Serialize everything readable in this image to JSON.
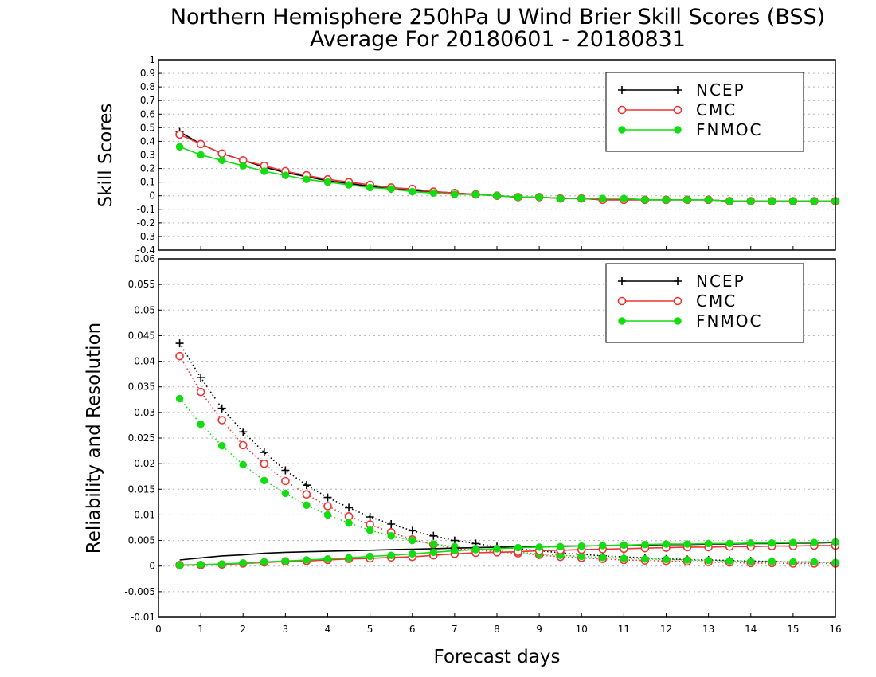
{
  "title_line1": "Northern Hemisphere 250hPa U Wind Brier Skill Scores (BSS)",
  "title_line2": "Average For 20180601 - 20180831",
  "colors": {
    "NCEP": "#000000",
    "CMC": "#ee3333",
    "FNMOC": "#11dd11"
  },
  "chart_data": [
    {
      "type": "line",
      "panel": "top",
      "title": "Northern Hemisphere 250hPa U Wind Brier Skill Scores (BSS)",
      "ylabel": "Skill Scores",
      "xlabel": "",
      "xlim": [
        0,
        16
      ],
      "ylim": [
        -0.4,
        1.0
      ],
      "yticks": [
        "1",
        "0.9",
        "0.8",
        "0.7",
        "0.6",
        "0.5",
        "0.4",
        "0.3",
        "0.2",
        "0.1",
        "0",
        "-0.1",
        "-0.2",
        "-0.3",
        "-0.4"
      ],
      "grid": "horizontal dotted",
      "legend_position": "top-right",
      "legend": [
        "NCEP",
        "CMC",
        "FNMOC"
      ],
      "x": [
        0.5,
        1,
        1.5,
        2,
        2.5,
        3,
        3.5,
        4,
        4.5,
        5,
        5.5,
        6,
        6.5,
        7,
        7.5,
        8,
        8.5,
        9,
        9.5,
        10,
        10.5,
        11,
        11.5,
        12,
        12.5,
        13,
        13.5,
        14,
        14.5,
        15,
        15.5,
        16
      ],
      "series": [
        {
          "name": "NCEP",
          "marker": "plus",
          "style": "solid",
          "values": [
            0.47,
            0.38,
            0.31,
            0.26,
            0.21,
            0.17,
            0.14,
            0.11,
            0.09,
            0.07,
            0.05,
            0.04,
            0.03,
            0.02,
            0.01,
            0.0,
            -0.01,
            -0.01,
            -0.02,
            -0.02,
            -0.03,
            -0.03,
            -0.03,
            -0.03,
            -0.03,
            -0.03,
            -0.04,
            -0.04,
            -0.04,
            -0.04,
            -0.04,
            -0.04
          ]
        },
        {
          "name": "CMC",
          "marker": "open-circle",
          "style": "solid",
          "values": [
            0.45,
            0.38,
            0.31,
            0.26,
            0.22,
            0.18,
            0.15,
            0.12,
            0.1,
            0.08,
            0.06,
            0.05,
            0.03,
            0.02,
            0.01,
            0.0,
            -0.01,
            -0.01,
            -0.02,
            -0.02,
            -0.03,
            -0.03,
            -0.03,
            -0.03,
            -0.03,
            -0.03,
            -0.04,
            -0.04,
            -0.04,
            -0.04,
            -0.04,
            -0.04
          ]
        },
        {
          "name": "FNMOC",
          "marker": "filled-circle",
          "style": "solid",
          "values": [
            0.36,
            0.3,
            0.26,
            0.22,
            0.18,
            0.15,
            0.12,
            0.1,
            0.08,
            0.06,
            0.05,
            0.03,
            0.02,
            0.01,
            0.01,
            0.0,
            -0.01,
            -0.01,
            -0.02,
            -0.02,
            -0.02,
            -0.02,
            -0.03,
            -0.03,
            -0.03,
            -0.03,
            -0.04,
            -0.04,
            -0.04,
            -0.04,
            -0.04,
            -0.04
          ]
        }
      ]
    },
    {
      "type": "line",
      "panel": "bottom",
      "title": "",
      "ylabel": "Reliability and Resolution",
      "xlabel": "Forecast days",
      "xlim": [
        0,
        16
      ],
      "ylim": [
        -0.01,
        0.06
      ],
      "yticks": [
        "0.06",
        "0.055",
        "0.05",
        "0.045",
        "0.04",
        "0.035",
        "0.03",
        "0.025",
        "0.02",
        "0.015",
        "0.01",
        "0.005",
        "0",
        "-0.005",
        "-0.01"
      ],
      "xticks": [
        "0",
        "1",
        "2",
        "3",
        "4",
        "5",
        "6",
        "7",
        "8",
        "9",
        "10",
        "11",
        "12",
        "13",
        "14",
        "15",
        "16"
      ],
      "grid": "horizontal dotted",
      "legend_position": "top-right",
      "legend": [
        "NCEP",
        "CMC",
        "FNMOC"
      ],
      "x": [
        0.5,
        1,
        1.5,
        2,
        2.5,
        3,
        3.5,
        4,
        4.5,
        5,
        5.5,
        6,
        6.5,
        7,
        7.5,
        8,
        8.5,
        9,
        9.5,
        10,
        10.5,
        11,
        11.5,
        12,
        12.5,
        13,
        13.5,
        14,
        14.5,
        15,
        15.5,
        16
      ],
      "series": [
        {
          "name": "NCEP",
          "metric": "reliability",
          "marker": "plus",
          "style": "dotted",
          "values": [
            0.0435,
            0.0368,
            0.0308,
            0.0262,
            0.0222,
            0.0187,
            0.0158,
            0.0134,
            0.0114,
            0.0096,
            0.0082,
            0.0069,
            0.0059,
            0.005,
            0.0044,
            0.0038,
            0.0034,
            0.003,
            0.0026,
            0.0023,
            0.002,
            0.0018,
            0.0016,
            0.0014,
            0.0013,
            0.0012,
            0.0011,
            0.001,
            0.0009,
            0.0008,
            0.0008,
            0.0007
          ]
        },
        {
          "name": "CMC",
          "metric": "reliability",
          "marker": "open-circle",
          "style": "dotted",
          "values": [
            0.041,
            0.034,
            0.0285,
            0.0236,
            0.02,
            0.0166,
            0.014,
            0.0117,
            0.0097,
            0.0081,
            0.0066,
            0.0052,
            0.0042,
            0.0034,
            0.0031,
            0.0028,
            0.0025,
            0.0022,
            0.0018,
            0.0016,
            0.0014,
            0.0012,
            0.0011,
            0.001,
            0.0009,
            0.0008,
            0.0007,
            0.0006,
            0.0006,
            0.0005,
            0.0005,
            0.0005
          ]
        },
        {
          "name": "FNMOC",
          "metric": "reliability",
          "marker": "filled-circle",
          "style": "dotted",
          "values": [
            0.0327,
            0.0277,
            0.0235,
            0.0198,
            0.0167,
            0.0142,
            0.0119,
            0.01,
            0.0084,
            0.007,
            0.0059,
            0.005,
            0.0043,
            0.0038,
            0.0034,
            0.003,
            0.0027,
            0.0024,
            0.0021,
            0.0019,
            0.0017,
            0.0015,
            0.0014,
            0.0013,
            0.0012,
            0.0011,
            0.001,
            0.0009,
            0.0009,
            0.0008,
            0.0008,
            0.0007
          ]
        },
        {
          "name": "NCEP",
          "metric": "resolution",
          "marker": "none",
          "style": "solid",
          "values": [
            0.0012,
            0.0016,
            0.002,
            0.0022,
            0.0025,
            0.0027,
            0.0028,
            0.0029,
            0.003,
            0.0031,
            0.0032,
            0.0033,
            0.0034,
            0.0035,
            0.0036,
            0.0037,
            0.0037,
            0.0038,
            0.0039,
            0.0039,
            0.004,
            0.0041,
            0.0041,
            0.0042,
            0.0042,
            0.0043,
            0.0043,
            0.0044,
            0.0044,
            0.0045,
            0.0045,
            0.0046
          ]
        },
        {
          "name": "CMC",
          "metric": "resolution",
          "marker": "open-circle",
          "style": "solid",
          "values": [
            0.0002,
            0.0002,
            0.0003,
            0.0005,
            0.0007,
            0.0009,
            0.001,
            0.0012,
            0.0014,
            0.0015,
            0.0017,
            0.0018,
            0.0021,
            0.0024,
            0.0026,
            0.0027,
            0.0028,
            0.003,
            0.0031,
            0.0032,
            0.0033,
            0.0034,
            0.0035,
            0.0036,
            0.0037,
            0.0037,
            0.0038,
            0.0038,
            0.0039,
            0.0039,
            0.004,
            0.004
          ]
        },
        {
          "name": "FNMOC",
          "metric": "resolution",
          "marker": "filled-circle",
          "style": "solid",
          "values": [
            0.0002,
            0.0003,
            0.0004,
            0.0006,
            0.0008,
            0.001,
            0.0012,
            0.0014,
            0.0016,
            0.0019,
            0.0021,
            0.0024,
            0.0027,
            0.003,
            0.0032,
            0.0034,
            0.0036,
            0.0037,
            0.0038,
            0.0039,
            0.004,
            0.0041,
            0.0042,
            0.0043,
            0.0043,
            0.0044,
            0.0044,
            0.0045,
            0.0045,
            0.0046,
            0.0046,
            0.0047
          ]
        }
      ]
    }
  ]
}
